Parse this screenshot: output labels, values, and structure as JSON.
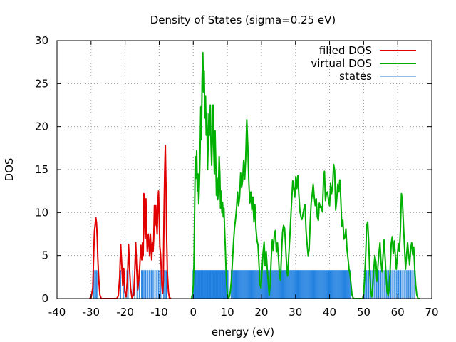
{
  "chart_data": {
    "type": "line",
    "title": "Density of States (sigma=0.25 eV)",
    "xlabel": "energy (eV)",
    "ylabel": "DOS",
    "xlim": [
      -40,
      70
    ],
    "ylim": [
      0,
      30
    ],
    "xticks": [
      -40,
      -30,
      -20,
      -10,
      0,
      10,
      20,
      30,
      40,
      50,
      60,
      70
    ],
    "yticks": [
      0,
      5,
      10,
      15,
      20,
      25,
      30
    ],
    "grid": true,
    "legend_position": "top-right",
    "series": [
      {
        "name": "filled DOS",
        "color": "#e00000",
        "kind": "line",
        "points": [
          [
            -30.5,
            0
          ],
          [
            -30,
            0.1
          ],
          [
            -29.5,
            1.2
          ],
          [
            -29.2,
            5.5
          ],
          [
            -29,
            7.8
          ],
          [
            -28.8,
            8.6
          ],
          [
            -28.6,
            9.4
          ],
          [
            -28.4,
            8.8
          ],
          [
            -28.2,
            7.2
          ],
          [
            -28,
            4.5
          ],
          [
            -27.7,
            2
          ],
          [
            -27.4,
            0.4
          ],
          [
            -27,
            0
          ],
          [
            -22.5,
            0
          ],
          [
            -22,
            0.3
          ],
          [
            -21.6,
            2.5
          ],
          [
            -21.3,
            6.3
          ],
          [
            -21,
            4
          ],
          [
            -20.7,
            1.5
          ],
          [
            -20.4,
            3.5
          ],
          [
            -20.1,
            0.8
          ],
          [
            -19.7,
            0.2
          ],
          [
            -19.3,
            2.5
          ],
          [
            -19,
            6.3
          ],
          [
            -18.7,
            3.5
          ],
          [
            -18.4,
            1.2
          ],
          [
            -18,
            0.1
          ],
          [
            -17.5,
            0.4
          ],
          [
            -17.2,
            2.8
          ],
          [
            -16.9,
            6.5
          ],
          [
            -16.6,
            3.5
          ],
          [
            -16.3,
            1
          ],
          [
            -16,
            2.2
          ],
          [
            -15.7,
            3.8
          ],
          [
            -15.4,
            6.2
          ],
          [
            -15.1,
            4.5
          ],
          [
            -14.9,
            6.5
          ],
          [
            -14.7,
            5
          ],
          [
            -14.5,
            12.2
          ],
          [
            -14.3,
            10
          ],
          [
            -14.1,
            7
          ],
          [
            -13.9,
            11.6
          ],
          [
            -13.7,
            8
          ],
          [
            -13.5,
            5.5
          ],
          [
            -13.2,
            7.5
          ],
          [
            -13,
            6.2
          ],
          [
            -12.8,
            5
          ],
          [
            -12.6,
            7.5
          ],
          [
            -12.4,
            6
          ],
          [
            -12.2,
            4.5
          ],
          [
            -12,
            6.5
          ],
          [
            -11.8,
            5.5
          ],
          [
            -11.6,
            7
          ],
          [
            -11.4,
            10.8
          ],
          [
            -11.2,
            8.5
          ],
          [
            -11,
            10.8
          ],
          [
            -10.8,
            9
          ],
          [
            -10.6,
            7.5
          ],
          [
            -10.4,
            11.2
          ],
          [
            -10.2,
            12.5
          ],
          [
            -10,
            9.5
          ],
          [
            -9.8,
            6
          ],
          [
            -9.6,
            5.2
          ],
          [
            -9.4,
            3.5
          ],
          [
            -9.2,
            1.5
          ],
          [
            -9,
            0.6
          ],
          [
            -8.8,
            2
          ],
          [
            -8.6,
            9.5
          ],
          [
            -8.4,
            14.5
          ],
          [
            -8.2,
            17.8
          ],
          [
            -8,
            13
          ],
          [
            -7.8,
            7
          ],
          [
            -7.6,
            3
          ],
          [
            -7.3,
            0.8
          ],
          [
            -7,
            0.1
          ],
          [
            -6.5,
            0
          ]
        ]
      },
      {
        "name": "virtual DOS",
        "color": "#00b000",
        "kind": "line",
        "points": [
          [
            -0.5,
            0
          ],
          [
            -0.2,
            0.6
          ],
          [
            0,
            1.5
          ],
          [
            0.2,
            4
          ],
          [
            0.4,
            10.5
          ],
          [
            0.6,
            16.5
          ],
          [
            0.8,
            14
          ],
          [
            1,
            17.2
          ],
          [
            1.2,
            12.5
          ],
          [
            1.4,
            14.5
          ],
          [
            1.6,
            11
          ],
          [
            1.8,
            13.5
          ],
          [
            2,
            17
          ],
          [
            2.2,
            22.3
          ],
          [
            2.4,
            18.5
          ],
          [
            2.6,
            25.7
          ],
          [
            2.8,
            28.6
          ],
          [
            3,
            24
          ],
          [
            3.2,
            26.5
          ],
          [
            3.4,
            21
          ],
          [
            3.6,
            23.5
          ],
          [
            3.8,
            19
          ],
          [
            4,
            21.5
          ],
          [
            4.2,
            15
          ],
          [
            4.4,
            18.5
          ],
          [
            4.6,
            21.5
          ],
          [
            4.8,
            19
          ],
          [
            5,
            22.5
          ],
          [
            5.2,
            18
          ],
          [
            5.4,
            15.5
          ],
          [
            5.6,
            19
          ],
          [
            5.8,
            22.5
          ],
          [
            6,
            17.5
          ],
          [
            6.2,
            14.5
          ],
          [
            6.4,
            19.5
          ],
          [
            6.6,
            16
          ],
          [
            6.8,
            12
          ],
          [
            7,
            14
          ],
          [
            7.2,
            11.5
          ],
          [
            7.4,
            13
          ],
          [
            7.6,
            16.5
          ],
          [
            7.8,
            14.5
          ],
          [
            8,
            10.5
          ],
          [
            8.2,
            12.5
          ],
          [
            8.4,
            10
          ],
          [
            8.6,
            11.2
          ],
          [
            8.8,
            9.5
          ],
          [
            9,
            10.5
          ],
          [
            9.2,
            8
          ],
          [
            9.4,
            6
          ],
          [
            9.6,
            3.5
          ],
          [
            9.8,
            1.5
          ],
          [
            10,
            0.6
          ],
          [
            10.3,
            0.1
          ],
          [
            10.6,
            0.2
          ],
          [
            10.9,
            0.9
          ],
          [
            11.2,
            2.2
          ],
          [
            11.5,
            4.3
          ],
          [
            11.8,
            6.5
          ],
          [
            12.1,
            8.2
          ],
          [
            12.4,
            9.2
          ],
          [
            12.7,
            10.5
          ],
          [
            13,
            12.4
          ],
          [
            13.3,
            10.8
          ],
          [
            13.6,
            11.8
          ],
          [
            13.9,
            14.6
          ],
          [
            14.2,
            12.9
          ],
          [
            14.5,
            13.8
          ],
          [
            14.8,
            16.1
          ],
          [
            15.1,
            13.9
          ],
          [
            15.4,
            16.4
          ],
          [
            15.7,
            20.8
          ],
          [
            16,
            17.8
          ],
          [
            16.3,
            13.6
          ],
          [
            16.6,
            11.1
          ],
          [
            16.9,
            12.4
          ],
          [
            17.2,
            10.3
          ],
          [
            17.5,
            11.8
          ],
          [
            17.8,
            8.9
          ],
          [
            18.1,
            10.9
          ],
          [
            18.4,
            8.1
          ],
          [
            18.7,
            6.8
          ],
          [
            19,
            6.2
          ],
          [
            19.3,
            3.9
          ],
          [
            19.6,
            1.6
          ],
          [
            19.9,
            1.2
          ],
          [
            20.2,
            3.4
          ],
          [
            20.5,
            5.4
          ],
          [
            20.8,
            6.6
          ],
          [
            21.1,
            3.8
          ],
          [
            21.4,
            5.5
          ],
          [
            21.7,
            3.5
          ],
          [
            22,
            1.9
          ],
          [
            22.3,
            0.4
          ],
          [
            22.6,
            1.9
          ],
          [
            22.9,
            4.8
          ],
          [
            23.2,
            6.8
          ],
          [
            23.5,
            5.6
          ],
          [
            23.8,
            7.5
          ],
          [
            24.1,
            7.9
          ],
          [
            24.4,
            5.4
          ],
          [
            24.7,
            6.5
          ],
          [
            25,
            4.8
          ],
          [
            25.3,
            2.8
          ],
          [
            25.6,
            2.1
          ],
          [
            25.9,
            5.2
          ],
          [
            26.2,
            7.7
          ],
          [
            26.5,
            8.5
          ],
          [
            26.8,
            8.2
          ],
          [
            27.1,
            6.2
          ],
          [
            27.4,
            3.8
          ],
          [
            27.7,
            2.6
          ],
          [
            28,
            4.8
          ],
          [
            28.3,
            6.9
          ],
          [
            28.6,
            9.2
          ],
          [
            28.9,
            11.5
          ],
          [
            29.2,
            13.7
          ],
          [
            29.5,
            12.8
          ],
          [
            29.8,
            11.8
          ],
          [
            30.1,
            14.2
          ],
          [
            30.4,
            12.8
          ],
          [
            30.7,
            14.3
          ],
          [
            31,
            12
          ],
          [
            31.3,
            10.2
          ],
          [
            31.6,
            9.5
          ],
          [
            31.9,
            9.2
          ],
          [
            32.2,
            9.8
          ],
          [
            32.5,
            10.5
          ],
          [
            32.8,
            10.9
          ],
          [
            33.1,
            7.9
          ],
          [
            33.4,
            6.4
          ],
          [
            33.7,
            5
          ],
          [
            34,
            5.7
          ],
          [
            34.3,
            8.7
          ],
          [
            34.6,
            11.1
          ],
          [
            34.9,
            12.1
          ],
          [
            35.2,
            13.3
          ],
          [
            35.5,
            11.8
          ],
          [
            35.8,
            10.8
          ],
          [
            36.1,
            11.6
          ],
          [
            36.4,
            9.5
          ],
          [
            36.7,
            9.1
          ],
          [
            37,
            11.1
          ],
          [
            37.3,
            10.6
          ],
          [
            37.6,
            10.7
          ],
          [
            37.9,
            10.1
          ],
          [
            38.2,
            13.5
          ],
          [
            38.5,
            14.8
          ],
          [
            38.8,
            11.4
          ],
          [
            39.1,
            12.3
          ],
          [
            39.4,
            12.4
          ],
          [
            39.7,
            11.4
          ],
          [
            40,
            10.8
          ],
          [
            40.3,
            13.4
          ],
          [
            40.6,
            12.2
          ],
          [
            40.9,
            13.1
          ],
          [
            41.2,
            15.6
          ],
          [
            41.5,
            14.9
          ],
          [
            41.8,
            10.3
          ],
          [
            42.1,
            11.5
          ],
          [
            42.4,
            13.3
          ],
          [
            42.7,
            12.4
          ],
          [
            43,
            13.8
          ],
          [
            43.3,
            11.5
          ],
          [
            43.6,
            8.4
          ],
          [
            43.9,
            9.1
          ],
          [
            44.2,
            6.9
          ],
          [
            44.5,
            7.1
          ],
          [
            44.8,
            8.1
          ],
          [
            45.1,
            5.8
          ],
          [
            45.4,
            4.7
          ],
          [
            45.7,
            3.5
          ],
          [
            46,
            2.8
          ],
          [
            46.3,
            1.6
          ],
          [
            46.6,
            0.4
          ],
          [
            46.9,
            0.1
          ],
          [
            47.2,
            0
          ],
          [
            49.7,
            0
          ],
          [
            50,
            0.5
          ],
          [
            50.3,
            2.5
          ],
          [
            50.6,
            5
          ],
          [
            50.9,
            8.5
          ],
          [
            51.2,
            8.9
          ],
          [
            51.5,
            6.5
          ],
          [
            51.8,
            3
          ],
          [
            52.1,
            0.8
          ],
          [
            52.4,
            0.2
          ],
          [
            52.7,
            1.5
          ],
          [
            53,
            3.5
          ],
          [
            53.3,
            5
          ],
          [
            53.6,
            4.2
          ],
          [
            53.9,
            2
          ],
          [
            54.2,
            3.8
          ],
          [
            54.5,
            5.3
          ],
          [
            54.8,
            6.5
          ],
          [
            55.1,
            4.2
          ],
          [
            55.4,
            3.1
          ],
          [
            55.7,
            5
          ],
          [
            56,
            6.8
          ],
          [
            56.3,
            4.8
          ],
          [
            56.6,
            2.5
          ],
          [
            56.9,
            0.8
          ],
          [
            57.2,
            0.3
          ],
          [
            57.5,
            1.2
          ],
          [
            57.8,
            3.5
          ],
          [
            58.1,
            6.4
          ],
          [
            58.4,
            7.2
          ],
          [
            58.7,
            5.2
          ],
          [
            59,
            6.7
          ],
          [
            59.3,
            5
          ],
          [
            59.6,
            3.4
          ],
          [
            59.9,
            5
          ],
          [
            60.2,
            6.4
          ],
          [
            60.5,
            5.5
          ],
          [
            60.8,
            8
          ],
          [
            61.1,
            12.2
          ],
          [
            61.4,
            11.2
          ],
          [
            61.7,
            8.5
          ],
          [
            62,
            6
          ],
          [
            62.3,
            3.4
          ],
          [
            62.6,
            5
          ],
          [
            62.9,
            6.5
          ],
          [
            63.2,
            5.2
          ],
          [
            63.5,
            3.9
          ],
          [
            63.8,
            5.8
          ],
          [
            64.1,
            6.5
          ],
          [
            64.4,
            5.1
          ],
          [
            64.7,
            6
          ],
          [
            65,
            3.4
          ],
          [
            65.3,
            1.5
          ],
          [
            65.6,
            0.4
          ],
          [
            66,
            0
          ],
          [
            66.5,
            0
          ]
        ]
      },
      {
        "name": "states",
        "color": "#1e7fe0",
        "kind": "impulse",
        "height": 3.3,
        "ranges": [
          [
            -29.2,
            -28.1,
            5
          ],
          [
            -21.3,
            -19.5,
            3
          ],
          [
            -19.1,
            -17.8,
            2
          ],
          [
            -17.2,
            -15.2,
            4
          ],
          [
            -15,
            -9.2,
            18
          ],
          [
            -8.7,
            -7.9,
            4
          ],
          [
            -0.1,
            10.2,
            62
          ],
          [
            11.1,
            46.2,
            165
          ],
          [
            50.2,
            64.8,
            46
          ]
        ]
      }
    ]
  }
}
